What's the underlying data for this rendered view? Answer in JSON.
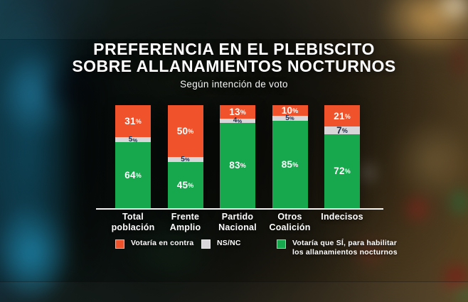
{
  "header": {
    "title_line1": "PREFERENCIA EN EL PLEBISCITO",
    "title_line2": "SOBRE ALLANAMIENTOS NOCTURNOS",
    "subtitle": "Según intención de voto"
  },
  "chart_data": {
    "type": "bar",
    "variant": "stacked-100-percent",
    "unit": "%",
    "title": "Preferencia en el plebiscito sobre allanamientos nocturnos",
    "subtitle": "Según intención de voto",
    "categories": [
      "Total población",
      "Frente Amplio",
      "Partido Nacional",
      "Otros Coalición",
      "Indecisos"
    ],
    "category_lines": [
      [
        "Total población"
      ],
      [
        "Frente",
        "Amplio"
      ],
      [
        "Partido",
        "Nacional"
      ],
      [
        "Otros",
        "Coalición"
      ],
      [
        "Indecisos"
      ]
    ],
    "series": [
      {
        "name": "Votaría en contra",
        "color": "#F0532B",
        "text_color": "#FFFFFF",
        "values": [
          31,
          50,
          13,
          10,
          21
        ]
      },
      {
        "name": "NS/NC",
        "color": "#D8D6D8",
        "text_color": "#1C2B4A",
        "values": [
          5,
          5,
          4,
          5,
          7
        ]
      },
      {
        "name": "Votaría que SÍ, para habilitar los allanamientos nocturnos",
        "color": "#17A74D",
        "text_color": "#FFFFFF",
        "values": [
          64,
          45,
          83,
          85,
          72
        ]
      }
    ],
    "stack_order_top_to_bottom": [
      "Votaría en contra",
      "NS/NC",
      "Votaría que SÍ, para habilitar los allanamientos nocturnos"
    ],
    "ylim": [
      0,
      100
    ],
    "grid": false,
    "legend_position": "bottom"
  },
  "legend": {
    "items": [
      {
        "lines": [
          "Votaría en contra"
        ],
        "color": "#F0532B"
      },
      {
        "lines": [
          "NS/NC"
        ],
        "color": "#D8D6D8"
      },
      {
        "lines": [
          "Votaría que SÍ, para habilitar",
          "los allanamientos nocturnos"
        ],
        "color": "#17A74D"
      }
    ]
  },
  "colors": {
    "against_orange": "#F0532B",
    "nsnc_gray": "#D8D6D8",
    "yes_green": "#17A74D",
    "gray_label_navy": "#1C2B4A",
    "baseline_white": "#FFFFFF"
  }
}
